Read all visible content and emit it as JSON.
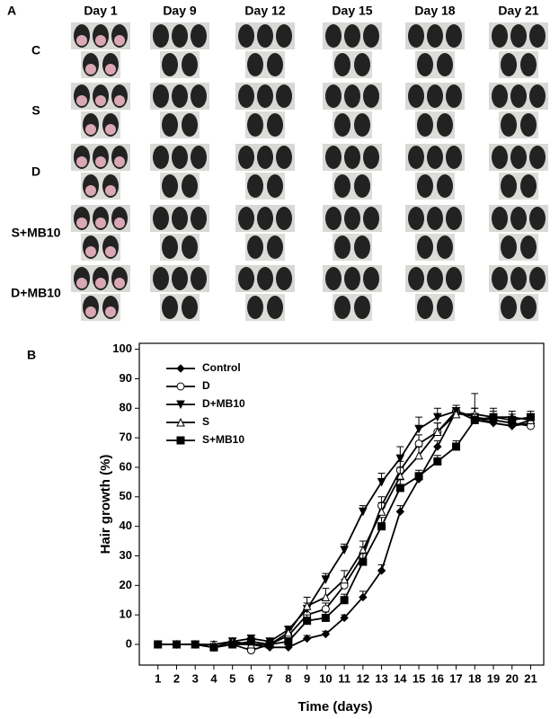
{
  "panel_a": {
    "label": "A",
    "columns": [
      "Day 1",
      "Day 9",
      "Day 12",
      "Day 15",
      "Day 18",
      "Day 21"
    ],
    "rows": [
      "C",
      "S",
      "D",
      "S+MB10",
      "D+MB10"
    ]
  },
  "chart_data": {
    "type": "line",
    "panel_label": "B",
    "x_label": "Time (days)",
    "y_label": "Hair growth (%)",
    "x": [
      1,
      2,
      3,
      4,
      5,
      6,
      7,
      8,
      9,
      10,
      11,
      12,
      13,
      14,
      15,
      16,
      17,
      18,
      19,
      20,
      21
    ],
    "xlim": [
      0,
      21.7
    ],
    "xticks": [
      1,
      2,
      3,
      4,
      5,
      6,
      7,
      8,
      9,
      10,
      11,
      12,
      13,
      14,
      15,
      16,
      17,
      18,
      19,
      20,
      21
    ],
    "ylim": [
      -7,
      102
    ],
    "yticks": [
      0,
      10,
      20,
      30,
      40,
      50,
      60,
      70,
      80,
      90,
      100
    ],
    "legend": "upper left",
    "series": [
      {
        "name": "Control",
        "color": "#000000",
        "marker": "diamond",
        "values": [
          0,
          0,
          0,
          -1,
          0,
          0,
          -1,
          -1,
          2,
          3.5,
          9,
          16,
          25,
          45,
          56,
          67,
          79,
          76,
          75,
          74,
          75
        ],
        "errors": [
          1,
          1,
          1,
          1,
          1,
          1,
          1,
          1,
          1,
          1,
          1,
          2,
          2,
          2,
          2,
          2,
          2,
          2,
          2,
          2,
          2
        ]
      },
      {
        "name": "D",
        "color": "#000000",
        "marker": "open-circle",
        "values": [
          0,
          0,
          0,
          -1,
          0,
          -2,
          0,
          3,
          10,
          12,
          20,
          30,
          47,
          59,
          68,
          72,
          79,
          77,
          76,
          75,
          74
        ],
        "errors": [
          1,
          1,
          1,
          1,
          1,
          2,
          1,
          1,
          2,
          2,
          2,
          3,
          3,
          3,
          3,
          3,
          2,
          3,
          2,
          2,
          2
        ]
      },
      {
        "name": "D+MB10",
        "color": "#000000",
        "marker": "down-triangle",
        "values": [
          0,
          0,
          0,
          -1,
          1,
          2,
          1,
          5,
          12,
          22,
          32,
          45,
          55,
          63,
          73,
          77,
          79,
          77,
          75,
          74,
          76
        ],
        "errors": [
          1,
          1,
          1,
          1,
          1,
          1,
          1,
          1,
          2,
          2,
          2,
          2,
          3,
          4,
          4,
          3,
          2,
          3,
          3,
          2,
          2
        ]
      },
      {
        "name": "S",
        "color": "#000000",
        "marker": "open-up-triangle",
        "values": [
          0,
          0,
          0,
          0,
          1,
          0,
          0,
          4,
          13,
          16,
          22,
          32,
          45,
          57,
          64,
          72,
          78,
          78,
          77,
          77,
          76
        ],
        "errors": [
          1,
          1,
          1,
          1,
          1,
          1,
          1,
          1,
          3,
          3,
          3,
          3,
          3,
          3,
          3,
          3,
          2,
          7,
          3,
          2,
          2
        ]
      },
      {
        "name": "S+MB10",
        "color": "#000000",
        "marker": "square",
        "values": [
          0,
          0,
          0,
          -1,
          0,
          1,
          0,
          1,
          8,
          9,
          15,
          28,
          40,
          53,
          57,
          62,
          67,
          76,
          77,
          76,
          77
        ],
        "errors": [
          1,
          1,
          1,
          1,
          1,
          1,
          1,
          1,
          2,
          2,
          2,
          3,
          3,
          3,
          2,
          2,
          2,
          2,
          2,
          2,
          2
        ]
      }
    ]
  }
}
